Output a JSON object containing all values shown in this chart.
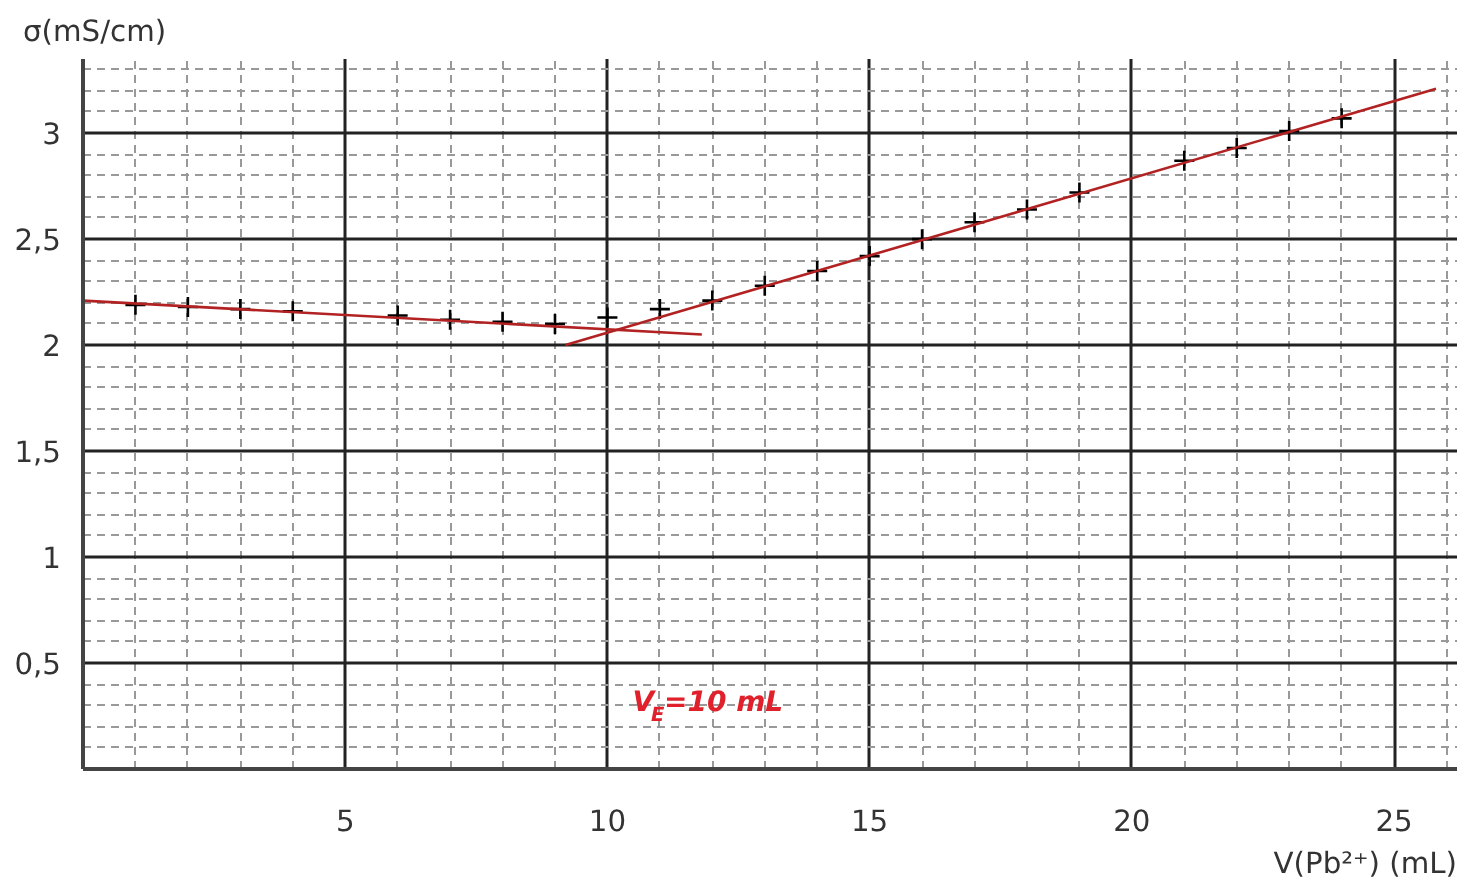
{
  "chart_data": {
    "type": "scatter",
    "xlabel": "V(Pb²⁺) (mL)",
    "ylabel": "σ(mS/cm)",
    "xlim": [
      0,
      26.2
    ],
    "ylim": [
      0,
      3.35
    ],
    "xticks": [
      5,
      10,
      15,
      20,
      25
    ],
    "yticks": [
      {
        "value": 0.5,
        "label": "0,5"
      },
      1,
      {
        "value": 1.5,
        "label": "1,5"
      },
      2,
      {
        "value": 2.5,
        "label": "2,5"
      },
      3
    ],
    "grid": true,
    "series": [
      {
        "marker": "cross",
        "color": "#000000",
        "x": [
          1,
          2,
          3,
          4,
          6,
          7,
          8,
          9,
          10,
          11,
          12,
          13,
          14,
          15,
          16,
          17,
          18,
          19,
          21,
          22,
          23,
          24
        ],
        "values": [
          2.19,
          2.18,
          2.17,
          2.16,
          2.14,
          2.12,
          2.11,
          2.1,
          2.13,
          2.17,
          2.21,
          2.28,
          2.35,
          2.42,
          2.5,
          2.58,
          2.64,
          2.72,
          2.87,
          2.93,
          3.01,
          3.07
        ]
      },
      {
        "type": "line",
        "line_style": "solid",
        "color": "#b22222",
        "x": [
          0,
          11.8
        ],
        "values": [
          2.21,
          2.05
        ]
      },
      {
        "type": "line",
        "line_style": "solid",
        "color": "#b22222",
        "x": [
          9.2,
          25.8
        ],
        "values": [
          2.0,
          3.21
        ]
      }
    ],
    "annotations": [
      "V$_{E}$=10 mL"
    ]
  }
}
